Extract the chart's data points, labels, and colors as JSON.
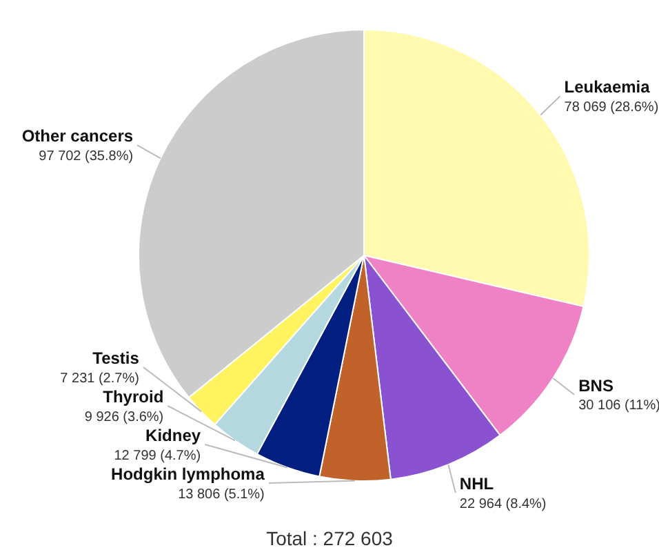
{
  "chart_data": {
    "type": "pie",
    "categories": [
      "Leukaemia",
      "BNS",
      "NHL",
      "Hodgkin lymphoma",
      "Kidney",
      "Thyroid",
      "Testis",
      "Other cancers"
    ],
    "values": [
      78069,
      30106,
      22964,
      13806,
      12799,
      9926,
      7231,
      97702
    ],
    "value_labels": [
      "78 069 (28.6%)",
      "30 106 (11%)",
      "22 964 (8.4%)",
      "13 806 (5.1%)",
      "12 799 (4.7%)",
      "9 926 (3.6%)",
      "7 231 (2.7%)",
      "97 702 (35.8%)"
    ],
    "colors": [
      "#fffab0",
      "#ee82c4",
      "#8a52d0",
      "#c0622a",
      "#001f80",
      "#b4d8e0",
      "#fff460",
      "#cccccc"
    ],
    "annotations": [
      "Total : 272 603"
    ],
    "legend": false
  }
}
